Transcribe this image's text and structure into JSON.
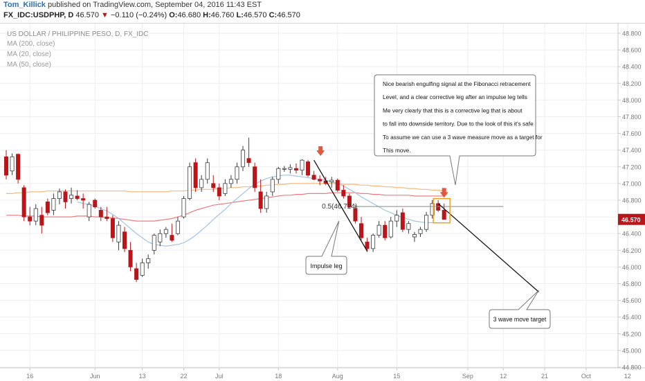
{
  "header": {
    "author": "Tom_Killick",
    "published": " published on TradingView.com, September 04, 2016 11:43 EST",
    "symbol": "FX_IDC:USDPHP, D",
    "last": "46.570",
    "arrow": "▼",
    "change": "−0.110 (−0.24%)",
    "o_label": "O:",
    "o_value": "46.680",
    "h_label": "H:",
    "h_value": "46.760",
    "l_label": "L:",
    "l_value": "46.570",
    "c_label": "C:",
    "c_value": "46.570"
  },
  "legend": {
    "title": "US DOLLAR / PHILIPPINE PESO, D, FX_IDC",
    "ma200": "MA (200, close)",
    "ma20": "MA (20, close)",
    "ma50": "MA (50, close)"
  },
  "annotations": {
    "fib_label": "0.5(46.724)",
    "note_lines": [
      "Nice bearish engulfing signal at the Fibonacci retracement",
      "Level, and a clear corrective leg after an impulse leg tells",
      "Me very clearly that this is a corrective leg that is about",
      "to fall into downside territory. Due to the look of this it's safe",
      "To assume we can use a 3 wave measure move as a target for",
      "This move."
    ],
    "impulse_label": "Impulse leg",
    "target_label": "3 wave move target",
    "last_price_badge": "46.570"
  },
  "colors": {
    "up": "#ffffff",
    "up_border": "#3a3a3a",
    "down": "#b8161b",
    "ma200": "#f4b87a",
    "ma20": "#9fc4e6",
    "ma50": "#ef7c7c",
    "arrow": "#e2583e",
    "box": "#f0a020",
    "badge": "#b8161b",
    "grid": "#eeeeee"
  },
  "chart_data": {
    "type": "candlestick",
    "title": "US DOLLAR / PHILIPPINE PESO, D, FX_IDC",
    "y_ticks": [
      "48.800",
      "48.600",
      "48.400",
      "48.200",
      "48.000",
      "47.800",
      "47.600",
      "47.400",
      "47.200",
      "47.000",
      "46.800",
      "46.600",
      "46.400",
      "46.200",
      "46.000",
      "45.800",
      "45.600",
      "45.400",
      "45.200",
      "45.000",
      "44.800"
    ],
    "ylim": [
      44.8,
      48.8
    ],
    "x_ticks": [
      {
        "label": "16",
        "i": 4
      },
      {
        "label": "Jun",
        "i": 15
      },
      {
        "label": "13",
        "i": 23
      },
      {
        "label": "22",
        "i": 30
      },
      {
        "label": "Jul",
        "i": 36
      },
      {
        "label": "18",
        "i": 46
      },
      {
        "label": "Aug",
        "i": 56
      },
      {
        "label": "15",
        "i": 66
      },
      {
        "label": "Sep",
        "i": 78
      },
      {
        "label": "12",
        "i": 84
      },
      {
        "label": "21",
        "i": 91
      },
      {
        "label": "Oct",
        "i": 98
      },
      {
        "label": "12",
        "i": 105
      }
    ],
    "candles": [
      [
        47.32,
        47.4,
        47.05,
        47.1
      ],
      [
        47.15,
        47.36,
        47.1,
        47.32
      ],
      [
        47.35,
        47.36,
        47.0,
        47.05
      ],
      [
        46.95,
        46.98,
        46.55,
        46.6
      ],
      [
        46.6,
        46.72,
        46.5,
        46.55
      ],
      [
        46.55,
        46.75,
        46.5,
        46.7
      ],
      [
        46.62,
        46.72,
        46.4,
        46.5
      ],
      [
        46.78,
        46.82,
        46.62,
        46.65
      ],
      [
        46.68,
        46.88,
        46.62,
        46.82
      ],
      [
        46.82,
        46.94,
        46.75,
        46.9
      ],
      [
        46.9,
        46.93,
        46.7,
        46.78
      ],
      [
        46.82,
        46.95,
        46.76,
        46.86
      ],
      [
        46.85,
        46.92,
        46.8,
        46.82
      ],
      [
        46.82,
        46.88,
        46.7,
        46.8
      ],
      [
        46.6,
        46.78,
        46.55,
        46.75
      ],
      [
        46.8,
        46.82,
        46.7,
        46.72
      ],
      [
        46.68,
        46.72,
        46.55,
        46.6
      ],
      [
        46.6,
        46.72,
        46.55,
        46.58
      ],
      [
        46.58,
        46.62,
        46.3,
        46.35
      ],
      [
        46.3,
        46.55,
        46.2,
        46.5
      ],
      [
        46.42,
        46.48,
        46.18,
        46.22
      ],
      [
        46.2,
        46.3,
        45.95,
        46.0
      ],
      [
        45.98,
        46.05,
        45.82,
        45.85
      ],
      [
        45.9,
        46.1,
        45.88,
        46.05
      ],
      [
        46.05,
        46.15,
        45.98,
        46.1
      ],
      [
        46.2,
        46.4,
        46.15,
        46.38
      ],
      [
        46.3,
        46.45,
        46.25,
        46.4
      ],
      [
        46.4,
        46.48,
        46.35,
        46.45
      ],
      [
        46.38,
        46.52,
        46.3,
        46.32
      ],
      [
        46.4,
        46.6,
        46.38,
        46.55
      ],
      [
        46.6,
        46.85,
        46.58,
        46.82
      ],
      [
        46.82,
        47.25,
        46.8,
        47.2
      ],
      [
        47.25,
        47.3,
        46.9,
        46.95
      ],
      [
        46.95,
        47.1,
        46.9,
        47.05
      ],
      [
        47.05,
        47.3,
        47.0,
        47.25
      ],
      [
        47.0,
        47.1,
        46.9,
        46.95
      ],
      [
        46.95,
        47.0,
        46.8,
        46.85
      ],
      [
        46.88,
        47.05,
        46.85,
        47.0
      ],
      [
        47.0,
        47.1,
        46.95,
        47.05
      ],
      [
        47.05,
        47.25,
        47.0,
        47.2
      ],
      [
        47.2,
        47.45,
        47.15,
        47.4
      ],
      [
        47.3,
        47.55,
        47.2,
        47.25
      ],
      [
        47.2,
        47.25,
        46.9,
        46.95
      ],
      [
        46.9,
        47.05,
        46.65,
        46.7
      ],
      [
        46.7,
        46.9,
        46.65,
        46.85
      ],
      [
        46.9,
        47.08,
        46.85,
        47.05
      ],
      [
        47.05,
        47.2,
        47.0,
        47.18
      ],
      [
        47.17,
        47.21,
        47.14,
        47.18
      ],
      [
        47.17,
        47.23,
        47.12,
        47.19
      ],
      [
        47.18,
        47.24,
        47.12,
        47.16
      ],
      [
        47.16,
        47.29,
        47.1,
        47.28
      ],
      [
        47.26,
        47.28,
        47.08,
        47.1
      ],
      [
        47.1,
        47.15,
        47.04,
        47.05
      ],
      [
        47.05,
        47.1,
        46.98,
        47.03
      ],
      [
        47.03,
        47.08,
        46.98,
        47.0
      ],
      [
        47.02,
        47.08,
        46.95,
        47.04
      ],
      [
        47.04,
        47.06,
        46.9,
        46.92
      ],
      [
        46.92,
        46.98,
        46.82,
        46.85
      ],
      [
        46.85,
        46.88,
        46.7,
        46.72
      ],
      [
        46.7,
        46.74,
        46.52,
        46.55
      ],
      [
        46.52,
        46.6,
        46.32,
        46.35
      ],
      [
        46.3,
        46.35,
        46.18,
        46.22
      ],
      [
        46.22,
        46.4,
        46.18,
        46.38
      ],
      [
        46.38,
        46.55,
        46.35,
        46.5
      ],
      [
        46.5,
        46.55,
        46.32,
        46.35
      ],
      [
        46.36,
        46.6,
        46.34,
        46.55
      ],
      [
        46.55,
        46.68,
        46.48,
        46.62
      ],
      [
        46.65,
        46.7,
        46.42,
        46.45
      ],
      [
        46.45,
        46.55,
        46.4,
        46.52
      ],
      [
        46.36,
        46.42,
        46.3,
        46.39
      ],
      [
        46.4,
        46.48,
        46.36,
        46.45
      ],
      [
        46.45,
        46.66,
        46.42,
        46.62
      ],
      [
        46.62,
        46.8,
        46.58,
        46.76
      ],
      [
        46.76,
        46.8,
        46.66,
        46.68
      ],
      [
        46.68,
        46.76,
        46.57,
        46.57
      ]
    ],
    "ma200": [
      46.88,
      46.88,
      46.89,
      46.89,
      46.9,
      46.9,
      46.9,
      46.91,
      46.91,
      46.91,
      46.91,
      46.91,
      46.91,
      46.91,
      46.91,
      46.91,
      46.91,
      46.91,
      46.91,
      46.91,
      46.91,
      46.9,
      46.9,
      46.9,
      46.9,
      46.9,
      46.9,
      46.9,
      46.91,
      46.91,
      46.91,
      46.92,
      46.92,
      46.93,
      46.93,
      46.93,
      46.94,
      46.94,
      46.95,
      46.95,
      46.96,
      46.96,
      46.97,
      46.97,
      46.98,
      46.98,
      46.99,
      46.99,
      47.0,
      47.0,
      47.0,
      47.0,
      47.0,
      47.0,
      47.0,
      47.0,
      47.0,
      46.99,
      46.99,
      46.99,
      46.98,
      46.98,
      46.97,
      46.97,
      46.96,
      46.96,
      46.95,
      46.95,
      46.94,
      46.94,
      46.93,
      46.93,
      46.92,
      46.92,
      46.91
    ],
    "ma50": [
      46.62,
      46.62,
      46.62,
      46.61,
      46.61,
      46.61,
      46.6,
      46.6,
      46.6,
      46.6,
      46.6,
      46.6,
      46.61,
      46.61,
      46.61,
      46.6,
      46.6,
      46.59,
      46.59,
      46.58,
      46.57,
      46.56,
      46.55,
      46.55,
      46.55,
      46.55,
      46.56,
      46.57,
      46.58,
      46.6,
      46.62,
      46.65,
      46.68,
      46.7,
      46.72,
      46.74,
      46.75,
      46.76,
      46.77,
      46.78,
      46.79,
      46.8,
      46.81,
      46.82,
      46.83,
      46.84,
      46.85,
      46.86,
      46.86,
      46.87,
      46.87,
      46.88,
      46.88,
      46.88,
      46.88,
      46.89,
      46.89,
      46.89,
      46.89,
      46.89,
      46.88,
      46.88,
      46.87,
      46.87,
      46.86,
      46.86,
      46.86,
      46.86,
      46.86,
      46.85,
      46.85,
      46.85,
      46.85,
      46.85,
      46.85
    ],
    "ma20": [
      null,
      null,
      null,
      null,
      null,
      null,
      null,
      null,
      null,
      null,
      null,
      null,
      46.78,
      46.76,
      46.75,
      46.73,
      46.7,
      46.67,
      46.63,
      46.58,
      46.52,
      46.46,
      46.4,
      46.35,
      46.3,
      46.27,
      46.26,
      46.25,
      46.26,
      46.27,
      46.29,
      46.33,
      46.38,
      46.44,
      46.5,
      46.57,
      46.63,
      46.69,
      46.76,
      46.82,
      46.88,
      46.94,
      46.99,
      47.03,
      47.06,
      47.08,
      47.09,
      47.1,
      47.1,
      47.09,
      47.08,
      47.07,
      47.06,
      47.05,
      47.04,
      47.02,
      47.0,
      46.97,
      46.93,
      46.89,
      46.84,
      46.8,
      46.76,
      46.72,
      46.68,
      46.65,
      46.62,
      46.59,
      46.57,
      46.55,
      46.54,
      46.53,
      46.53,
      46.53,
      46.53
    ],
    "fib_level": 46.724,
    "impulse_leg": [
      {
        "i": 52,
        "price": 47.28
      },
      {
        "i": 61,
        "price": 46.19
      }
    ],
    "target_leg": [
      {
        "i": 73,
        "price": 46.76
      },
      {
        "i": 90,
        "price": 45.7
      }
    ]
  }
}
